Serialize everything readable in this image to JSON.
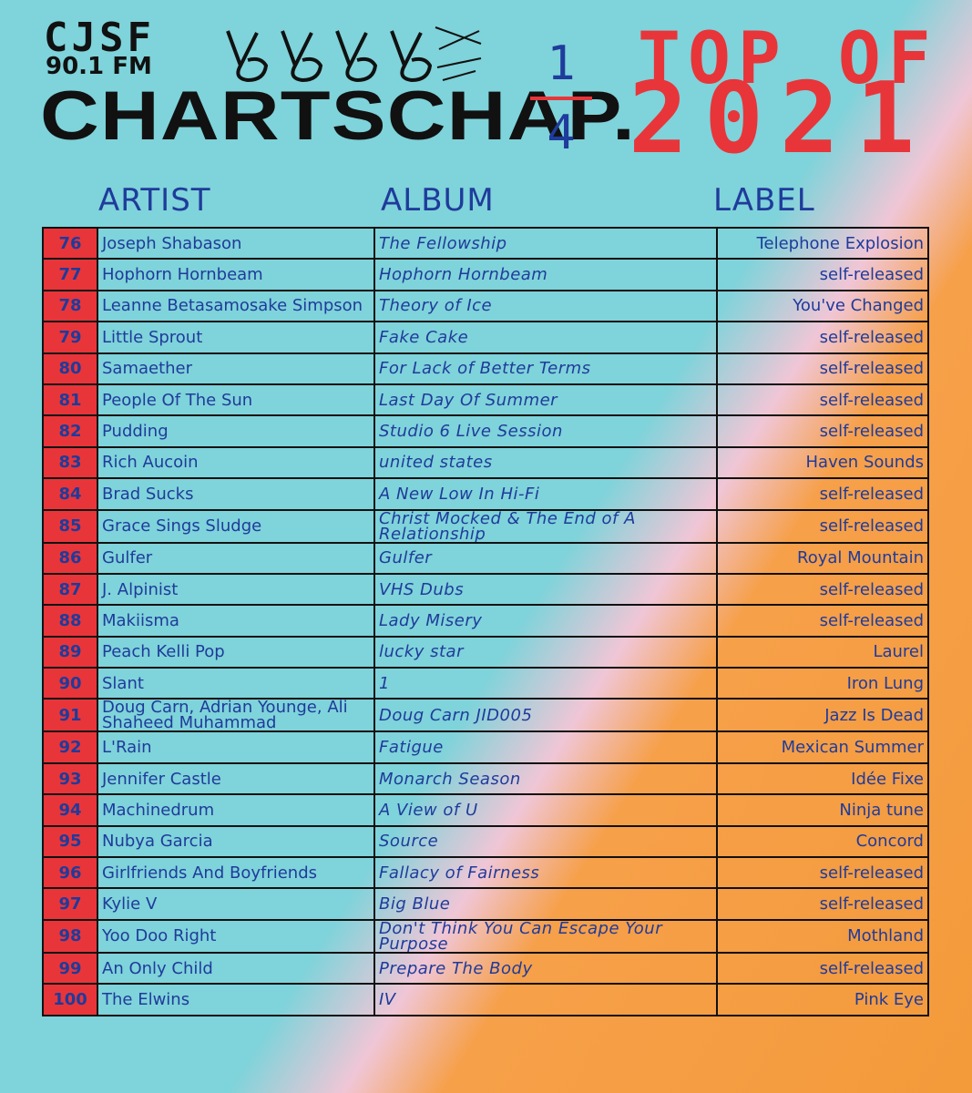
{
  "header": {
    "station": "CJSF",
    "frequency": "90.1 FM",
    "logo_word": "CHARTSCHAP.",
    "part_numerator": "1",
    "part_denominator": "4",
    "title_line": "TOP OF",
    "year": "2021"
  },
  "columns": {
    "artist": "ARTIST",
    "album": "ALBUM",
    "label": "LABEL"
  },
  "colors": {
    "accent_red": "#e8353a",
    "text_blue": "#1f3b9b",
    "bg_teal": "#7fd3da",
    "bg_orange": "#f39a3a",
    "bg_pink": "#f0c6d6"
  },
  "rows": [
    {
      "rank": "76",
      "artist": "Joseph Shabason",
      "album": "The Fellowship",
      "label": "Telephone Explosion"
    },
    {
      "rank": "77",
      "artist": "Hophorn Hornbeam",
      "album": "Hophorn Hornbeam",
      "label": "self-released"
    },
    {
      "rank": "78",
      "artist": "Leanne Betasamosake Simpson",
      "album": "Theory of Ice",
      "label": "You've Changed"
    },
    {
      "rank": "79",
      "artist": "Little Sprout",
      "album": "Fake Cake",
      "label": "self-released"
    },
    {
      "rank": "80",
      "artist": "Samaether",
      "album": "For Lack of Better Terms",
      "label": "self-released"
    },
    {
      "rank": "81",
      "artist": "People Of The Sun",
      "album": "Last Day Of Summer",
      "label": "self-released"
    },
    {
      "rank": "82",
      "artist": "Pudding",
      "album": "Studio 6 Live Session",
      "label": "self-released"
    },
    {
      "rank": "83",
      "artist": "Rich Aucoin",
      "album": "united states",
      "label": "Haven Sounds"
    },
    {
      "rank": "84",
      "artist": "Brad Sucks",
      "album": "A New Low In Hi-Fi",
      "label": "self-released"
    },
    {
      "rank": "85",
      "artist": "Grace Sings Sludge",
      "album": "Christ Mocked & The End of A Relationship",
      "label": "self-released"
    },
    {
      "rank": "86",
      "artist": "Gulfer",
      "album": "Gulfer",
      "label": "Royal Mountain"
    },
    {
      "rank": "87",
      "artist": "J. Alpinist",
      "album": "VHS Dubs",
      "label": "self-released"
    },
    {
      "rank": "88",
      "artist": "Makiisma",
      "album": "Lady Misery",
      "label": "self-released"
    },
    {
      "rank": "89",
      "artist": "Peach Kelli Pop",
      "album": "lucky star",
      "label": "Laurel"
    },
    {
      "rank": "90",
      "artist": "Slant",
      "album": "1",
      "label": "Iron Lung"
    },
    {
      "rank": "91",
      "artist": "Doug Carn, Adrian Younge, Ali Shaheed Muhammad",
      "album": "Doug Carn JID005",
      "label": "Jazz Is Dead"
    },
    {
      "rank": "92",
      "artist": "L'Rain",
      "album": "Fatigue",
      "label": "Mexican Summer"
    },
    {
      "rank": "93",
      "artist": "Jennifer Castle",
      "album": "Monarch Season",
      "label": "Idée Fixe"
    },
    {
      "rank": "94",
      "artist": "Machinedrum",
      "album": "A View of U",
      "label": "Ninja tune"
    },
    {
      "rank": "95",
      "artist": "Nubya Garcia",
      "album": "Source",
      "label": "Concord"
    },
    {
      "rank": "96",
      "artist": "Girlfriends And Boyfriends",
      "album": "Fallacy of Fairness",
      "label": "self-released"
    },
    {
      "rank": "97",
      "artist": "Kylie V",
      "album": "Big Blue",
      "label": "self-released"
    },
    {
      "rank": "98",
      "artist": "Yoo Doo Right",
      "album": "Don't Think You Can Escape Your Purpose",
      "label": "Mothland"
    },
    {
      "rank": "99",
      "artist": "An Only Child",
      "album": "Prepare The Body",
      "label": "self-released"
    },
    {
      "rank": "100",
      "artist": "The Elwins",
      "album": "IV",
      "label": "Pink Eye"
    }
  ]
}
